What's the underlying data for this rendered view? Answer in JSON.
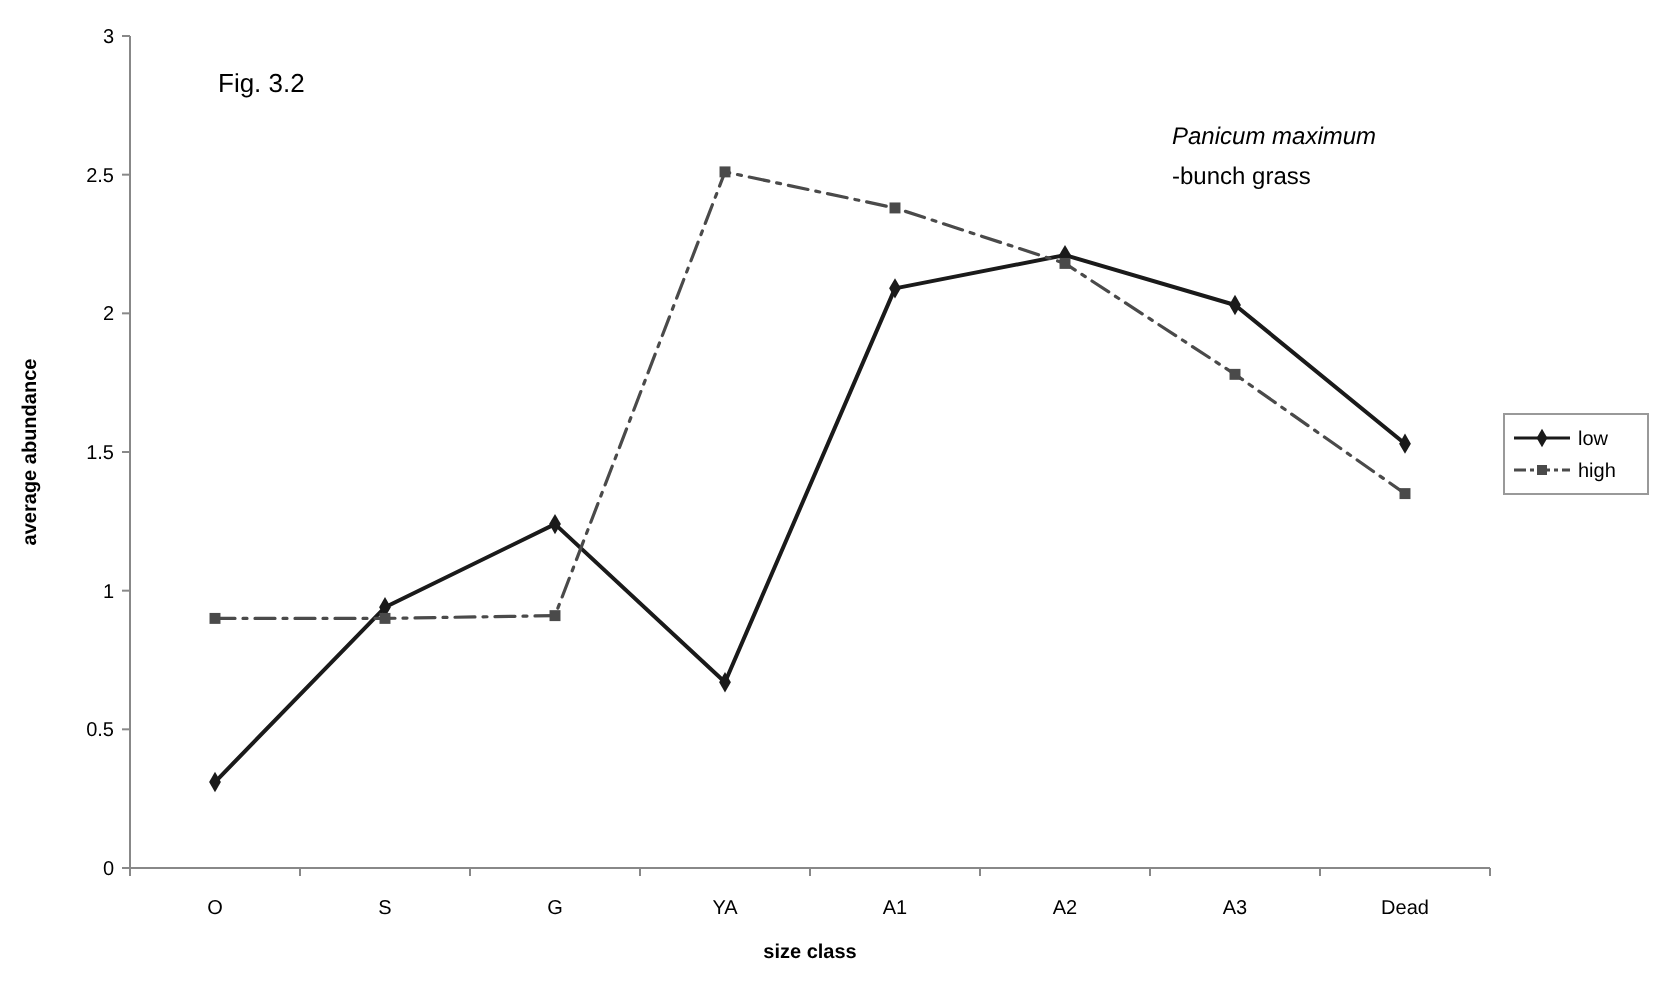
{
  "chart_data": {
    "type": "line",
    "title": "Fig. 3.2",
    "xlabel": "size class",
    "ylabel": "average abundance",
    "annotations": [
      "Panicum maximum",
      "-bunch grass"
    ],
    "categories": [
      "O",
      "S",
      "G",
      "YA",
      "A1",
      "A2",
      "A3",
      "Dead"
    ],
    "ylim": [
      0,
      3
    ],
    "yticks": [
      0,
      0.5,
      1,
      1.5,
      2,
      2.5,
      3
    ],
    "grid": false,
    "legend": "right",
    "series": [
      {
        "name": "low",
        "color": "#1a1a1a",
        "marker": "diamond",
        "line_style": "solid",
        "values": [
          0.31,
          0.94,
          1.24,
          0.67,
          2.09,
          2.21,
          2.03,
          1.53
        ]
      },
      {
        "name": "high",
        "color": "#4a4a4a",
        "marker": "square",
        "line_style": "dashed",
        "values": [
          0.9,
          0.9,
          0.91,
          2.51,
          2.38,
          2.18,
          1.78,
          1.35
        ]
      }
    ]
  }
}
